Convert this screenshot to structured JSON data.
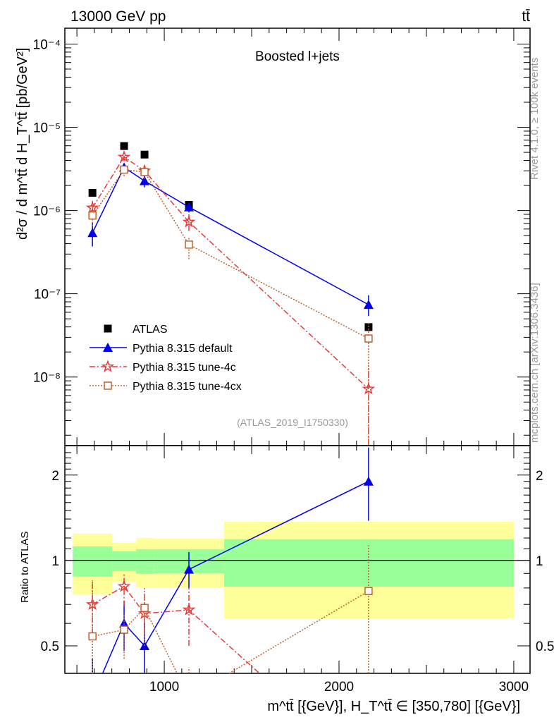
{
  "header": {
    "energy_label": "13000 GeV pp",
    "process_label": "tt̄"
  },
  "side_labels": {
    "rivet": "Rivet 4.1.0, ≥ 100k events",
    "mcplots": "mcplots.cern.ch [arXiv:1306.3436]"
  },
  "chart_data": [
    {
      "type": "line",
      "title": "Boosted l+jets",
      "analysis_label": "(ATLAS_2019_I1750330)",
      "ylabel": "d²σ / d m^tt̄ d H_T^tt̄ [pb/GeV²]",
      "xlabel": "m^tt̄ [{GeV}], H_T^tt̄ ∈ [350,780] [{GeV}]",
      "yscale": "log",
      "ylim": [
        1.5e-09,
        0.000155
      ],
      "xlim": [
        431,
        3093
      ],
      "ytick_labels": [
        "10⁻⁸",
        "10⁻⁷",
        "10⁻⁶",
        "10⁻⁵",
        "10⁻⁴"
      ],
      "ytick_values": [
        1e-08,
        1e-07,
        1e-06,
        1e-05,
        0.0001
      ],
      "legend_position": "lower-left",
      "x": [
        589,
        770,
        887,
        1141,
        2169
      ],
      "bin_edges": [
        476,
        702,
        839,
        940,
        1343,
        3000
      ],
      "series": [
        {
          "name": "ATLAS",
          "color": "#000000",
          "marker": "square",
          "values": [
            1.63e-06,
            5.95e-06,
            4.7e-06,
            1.17e-06,
            3.98e-08
          ]
        },
        {
          "name": "Pythia 8.315 default",
          "color": "#0000ee",
          "marker": "triangle",
          "style": "solid",
          "values": [
            5.4e-07,
            3.3e-06,
            2.27e-06,
            1.1e-06,
            7.4e-08
          ],
          "err_low": [
            3.7e-07,
            2.9e-06,
            1.9e-06,
            9.5e-07,
            5.4e-08
          ],
          "err_high": [
            7.2e-07,
            3.6e-06,
            2.6e-06,
            1.25e-06,
            9.6e-08
          ]
        },
        {
          "name": "Pythia 8.315 tune-4c",
          "color": "#e83a3a",
          "marker": "star",
          "style": "dashdot",
          "values": [
            1.08e-06,
            4.4e-06,
            3e-06,
            7.3e-07,
            7.2e-09
          ],
          "err_low": [
            9e-07,
            3.9e-06,
            2.6e-06,
            5.7e-07,
            1.5e-09
          ],
          "err_high": [
            1.3e-06,
            5e-06,
            3.5e-06,
            9e-07,
            1.4e-08
          ]
        },
        {
          "name": "Pythia 8.315 tune-4cx",
          "color": "#c0622a",
          "marker": "open-square",
          "style": "dotted",
          "values": [
            8.7e-07,
            3.1e-06,
            2.9e-06,
            3.9e-07,
            2.9e-08
          ],
          "err_low": [
            6.5e-07,
            2.6e-06,
            2.4e-06,
            2.6e-07,
            1.5e-09
          ],
          "err_high": [
            1.1e-06,
            3.4e-06,
            3.4e-06,
            4.8e-07,
            4.5e-08
          ]
        }
      ]
    },
    {
      "type": "line",
      "ylabel": "Ratio to ATLAS",
      "yscale": "log",
      "ylim": [
        0.4,
        2.54
      ],
      "ytick_labels": [
        "0.5",
        "1",
        "2"
      ],
      "ytick_values": [
        0.5,
        1,
        2
      ],
      "xtick_labels": [
        "1000",
        "2000",
        "3000"
      ],
      "xtick_values": [
        1000,
        2000,
        3000
      ],
      "bands": {
        "yellow": {
          "color": "#ffff99",
          "low": [
            0.76,
            0.842,
            0.804,
            0.804,
            0.625
          ],
          "high": [
            1.243,
            1.154,
            1.201,
            1.194,
            1.37
          ]
        },
        "green": {
          "color": "#99ff99",
          "low": [
            0.877,
            0.918,
            0.897,
            0.902,
            0.809
          ],
          "high": [
            1.121,
            1.077,
            1.096,
            1.096,
            1.188
          ]
        }
      },
      "series": [
        {
          "name": "Pythia 8.315 default",
          "values": [
            0.33,
            0.6,
            0.5,
            0.93,
            1.9
          ],
          "err_low": [
            0.23,
            0.48,
            0.3,
            0.8,
            1.38
          ],
          "err_high": [
            0.45,
            0.72,
            0.6,
            1.07,
            2.5
          ]
        },
        {
          "name": "Pythia 8.315 tune-4c",
          "values": [
            0.7,
            0.81,
            0.65,
            0.67,
            0.18
          ],
          "err_low": [
            0.55,
            0.69,
            0.55,
            0.5,
            0.04
          ],
          "err_high": [
            0.85,
            0.9,
            0.76,
            0.8,
            0.35
          ]
        },
        {
          "name": "Pythia 8.315 tune-4cx",
          "values": [
            0.54,
            0.57,
            0.68,
            0.33,
            0.78
          ],
          "err_low": [
            0.3,
            0.45,
            0.5,
            0.22,
            0.04
          ],
          "err_high": [
            0.85,
            0.65,
            0.8,
            0.42,
            1.13
          ]
        }
      ]
    }
  ]
}
